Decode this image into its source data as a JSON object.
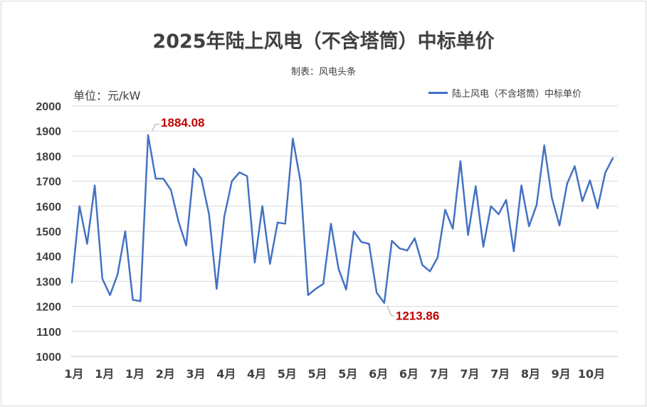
{
  "chart_data": {
    "type": "line",
    "title": "2025年陆上风电（不含塔筒）中标单价",
    "subtitle": "制表：风电头条",
    "unit_label": "单位：元/kW",
    "ylim": [
      1000,
      2000
    ],
    "ytick_step": 100,
    "grid": true,
    "legend_position": "top-right",
    "colors": {
      "line": "#4472c4",
      "annotation": "#c00000",
      "axis_text": "#404040",
      "grid": "#d9d9d9"
    },
    "series": [
      {
        "name": "陆上风电（不含塔筒）中标单价",
        "values": [
          1295,
          1600,
          1450,
          1683,
          1310,
          1245,
          1328,
          1500,
          1226,
          1221,
          1884.08,
          1710,
          1710,
          1665,
          1538,
          1443,
          1750,
          1710,
          1568,
          1270,
          1558,
          1700,
          1735,
          1720,
          1375,
          1600,
          1370,
          1535,
          1530,
          1870,
          1700,
          1245,
          1270,
          1290,
          1530,
          1350,
          1267,
          1500,
          1457,
          1450,
          1255,
          1213.86,
          1462,
          1432,
          1423,
          1472,
          1365,
          1340,
          1395,
          1586,
          1510,
          1780,
          1485,
          1680,
          1438,
          1600,
          1568,
          1625,
          1420,
          1683,
          1520,
          1605,
          1843,
          1633,
          1523,
          1690,
          1760,
          1620,
          1703,
          1592,
          1733,
          1792
        ]
      }
    ],
    "x_tick_labels": [
      "1月",
      "1月",
      "1月",
      "2月",
      "3月",
      "4月",
      "4月",
      "5月",
      "5月",
      "5月",
      "6月",
      "6月",
      "7月",
      "7月",
      "7月",
      "8月",
      "9月",
      "10月"
    ],
    "annotations": [
      {
        "text": "1884.08",
        "point_index": 10
      },
      {
        "text": "1213.86",
        "point_index": 41
      }
    ]
  }
}
